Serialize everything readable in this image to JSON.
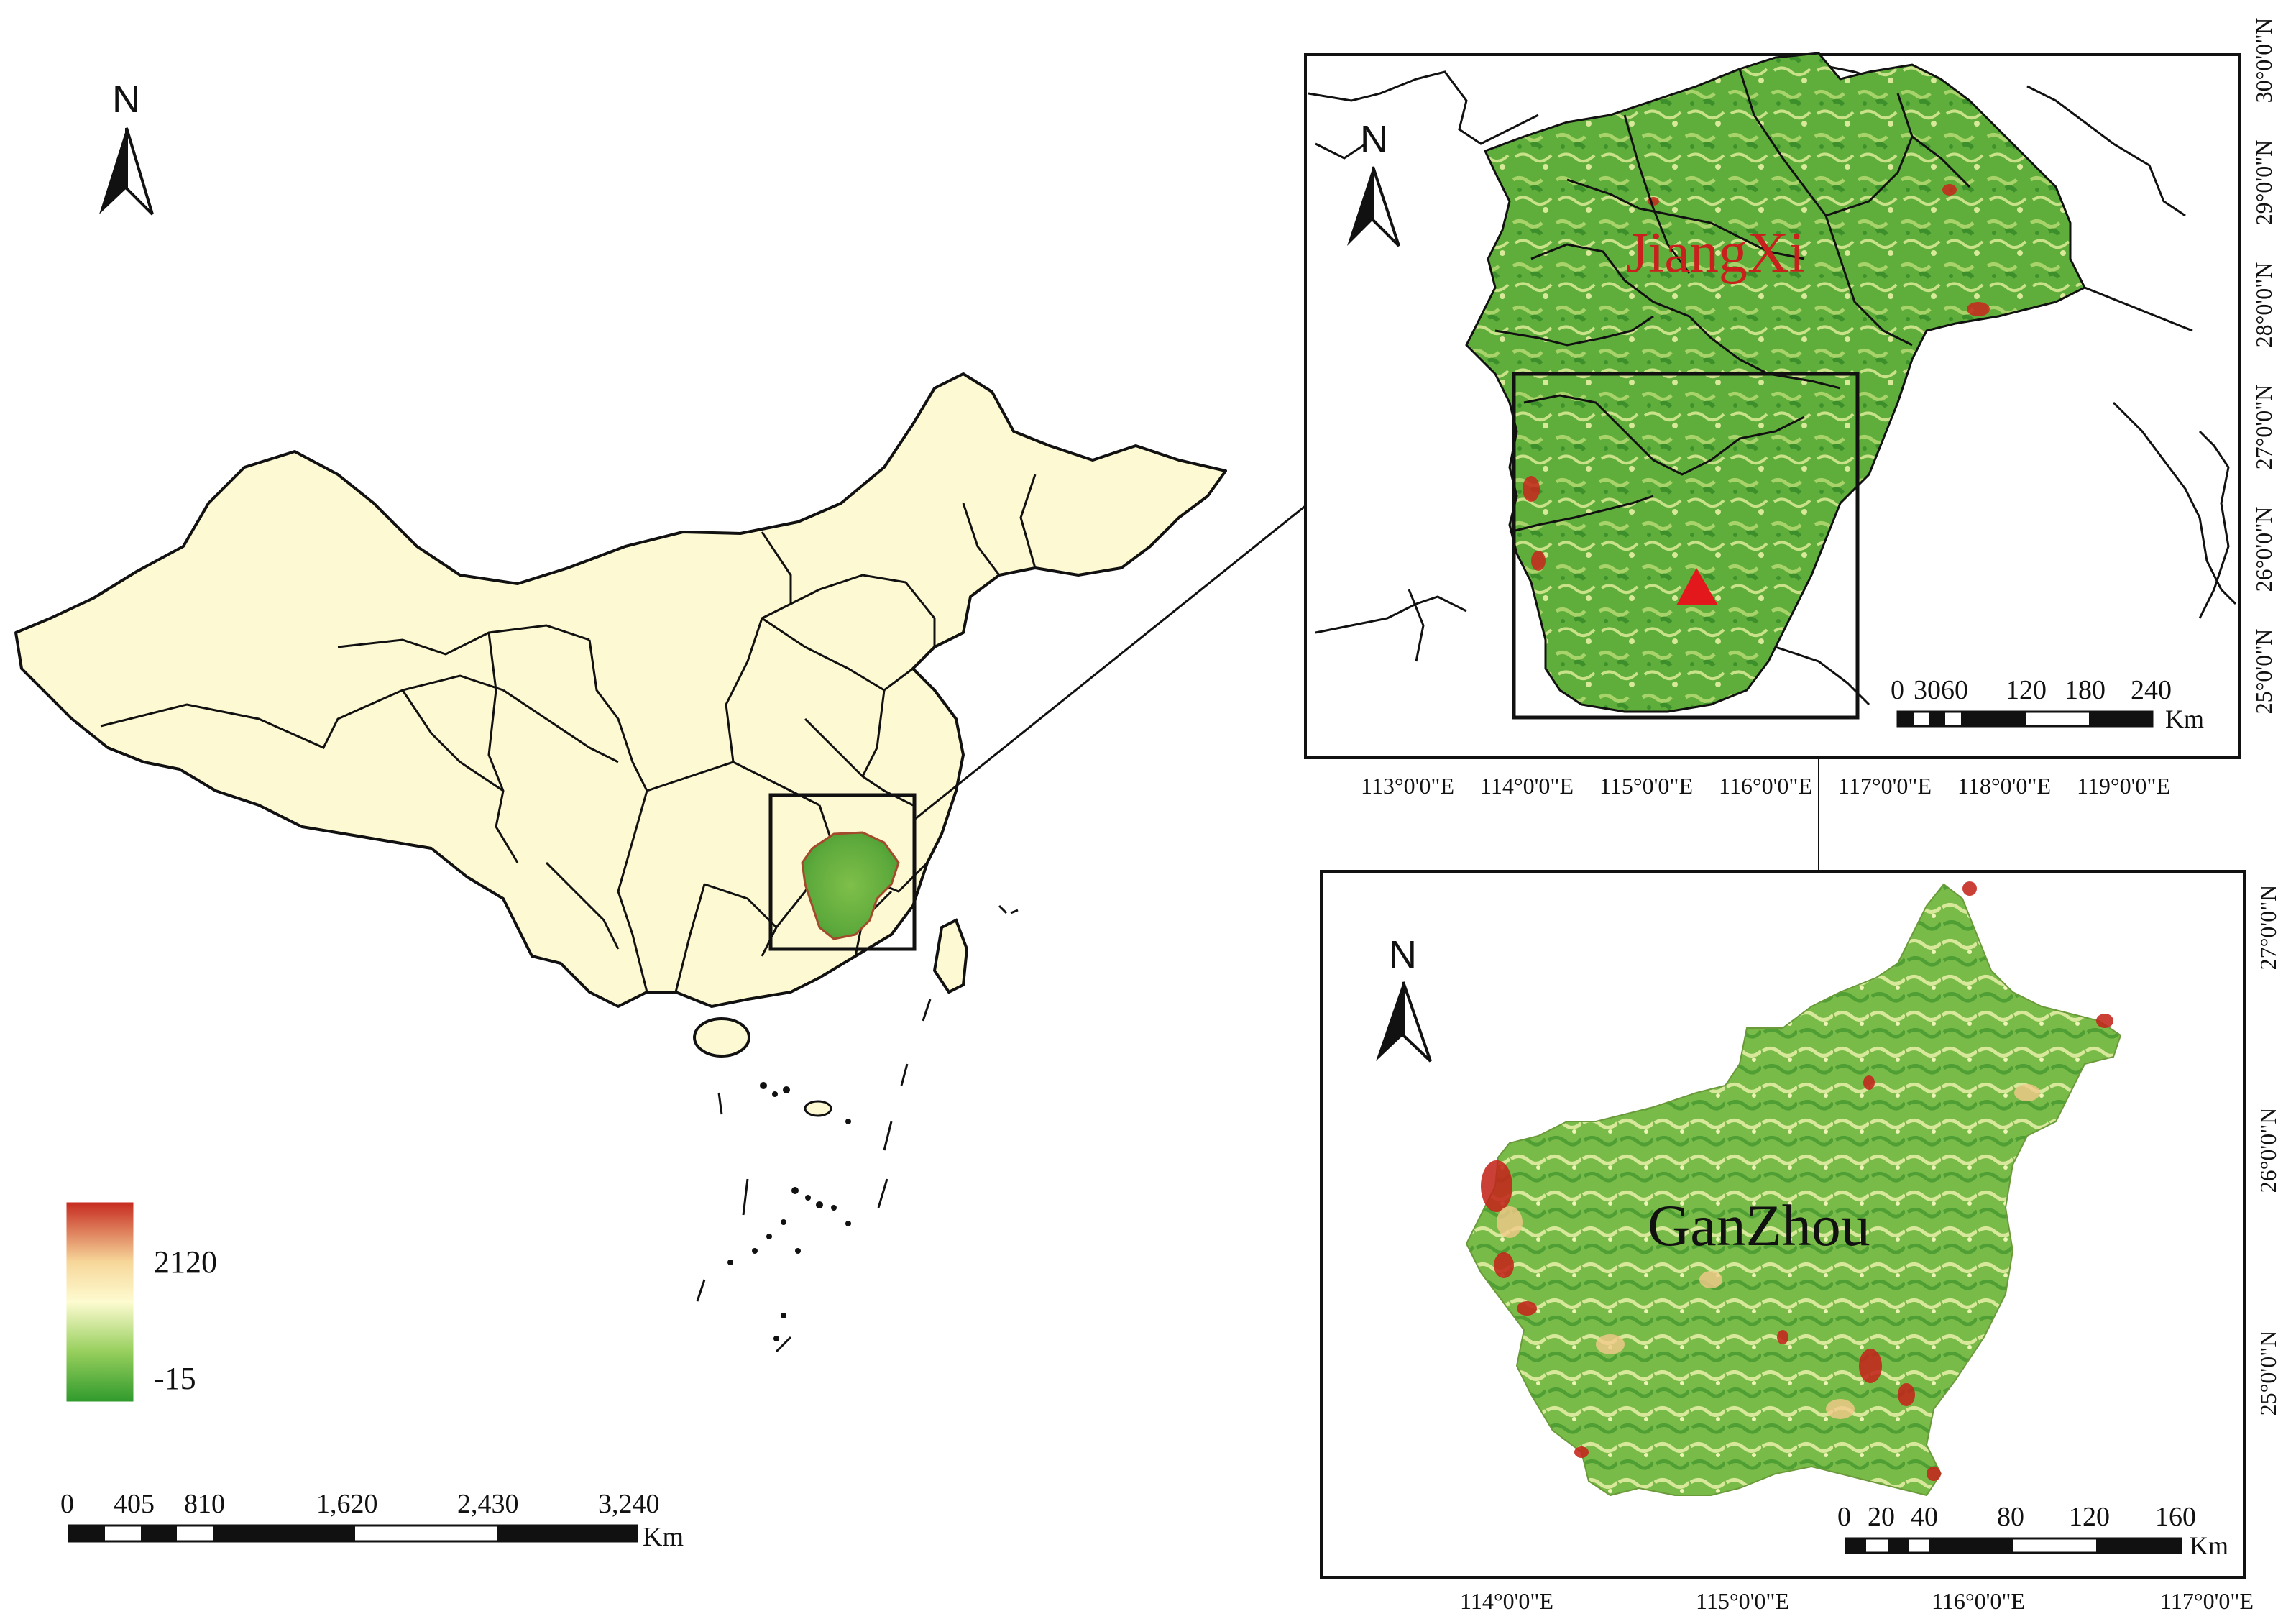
{
  "overview_map": {
    "north_label": "N",
    "legend": {
      "high": "2120",
      "low": "-15",
      "colors": [
        "#c62a1f",
        "#f7d79a",
        "#fdfbd0",
        "#97cf5d",
        "#2f9a2c"
      ]
    },
    "scale_bar": {
      "ticks": [
        "0",
        "405",
        "810",
        "1,620",
        "2,430",
        "3,240"
      ],
      "unit": "Km"
    },
    "fill_color": "#fdf9d2"
  },
  "jiangxi_map": {
    "north_label": "N",
    "title": "JiangXi",
    "title_color": "#c8201c",
    "marker": "red-triangle",
    "lon_ticks": [
      "113°0'0\"E",
      "114°0'0\"E",
      "115°0'0\"E",
      "116°0'0\"E",
      "117°0'0\"E",
      "118°0'0\"E",
      "119°0'0\"E"
    ],
    "lat_ticks": [
      "30°0'0\"N",
      "29°0'0\"N",
      "28°0'0\"N",
      "27°0'0\"N",
      "26°0'0\"N",
      "25°0'0\"N"
    ],
    "scale_bar": {
      "ticks": [
        "0",
        "3060",
        "120",
        "180",
        "240"
      ],
      "unit": "Km"
    }
  },
  "ganzhou_map": {
    "north_label": "N",
    "title": "GanZhou",
    "lon_ticks": [
      "114°0'0\"E",
      "115°0'0\"E",
      "116°0'0\"E",
      "117°0'0\"E"
    ],
    "lat_ticks": [
      "27°0'0\"N",
      "26°0'0\"N",
      "25°0'0\"N"
    ],
    "scale_bar": {
      "ticks": [
        "0",
        "20",
        "40",
        "80",
        "120",
        "160"
      ],
      "unit": "Km"
    }
  }
}
